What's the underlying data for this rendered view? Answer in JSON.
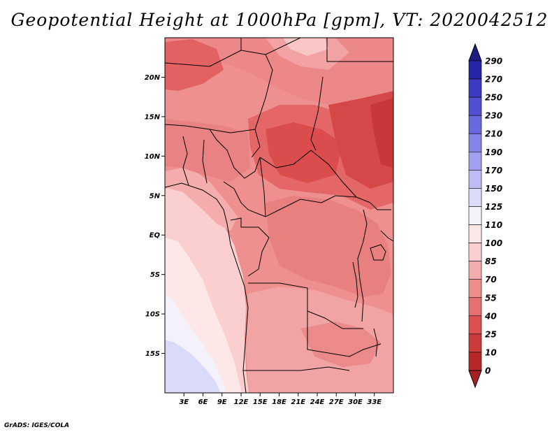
{
  "title": "Geopotential Height at 1000hPa [gpm], VT: 2020042512",
  "credit": "GrADS: IGES/COLA",
  "map": {
    "variable": "Geopotential Height",
    "level": "1000hPa",
    "units": "gpm",
    "valid_time": "2020042512",
    "lon_range": [
      0,
      36
    ],
    "lat_range": [
      -20,
      25
    ],
    "lon_ticks": [
      {
        "value": 3,
        "label": "3E"
      },
      {
        "value": 6,
        "label": "6E"
      },
      {
        "value": 9,
        "label": "9E"
      },
      {
        "value": 12,
        "label": "12E"
      },
      {
        "value": 15,
        "label": "15E"
      },
      {
        "value": 18,
        "label": "18E"
      },
      {
        "value": 21,
        "label": "21E"
      },
      {
        "value": 24,
        "label": "24E"
      },
      {
        "value": 27,
        "label": "27E"
      },
      {
        "value": 30,
        "label": "30E"
      },
      {
        "value": 33,
        "label": "33E"
      }
    ],
    "lat_ticks": [
      {
        "value": 20,
        "label": "20N"
      },
      {
        "value": 15,
        "label": "15N"
      },
      {
        "value": 10,
        "label": "10N"
      },
      {
        "value": 5,
        "label": "5N"
      },
      {
        "value": 0,
        "label": "EQ"
      },
      {
        "value": -5,
        "label": "5S"
      },
      {
        "value": -10,
        "label": "10S"
      },
      {
        "value": -15,
        "label": "15S"
      }
    ]
  },
  "colorbar": {
    "levels": [
      {
        "label": "290",
        "color": "#1a1a8c"
      },
      {
        "label": "270",
        "color": "#2626a8"
      },
      {
        "label": "250",
        "color": "#3a3ac2"
      },
      {
        "label": "230",
        "color": "#5050d2"
      },
      {
        "label": "210",
        "color": "#6a6ae0"
      },
      {
        "label": "190",
        "color": "#8484ea"
      },
      {
        "label": "170",
        "color": "#a0a0f0"
      },
      {
        "label": "150",
        "color": "#bcbcf6"
      },
      {
        "label": "125",
        "color": "#dadafa"
      },
      {
        "label": "110",
        "color": "#f2f2fd"
      },
      {
        "label": "100",
        "color": "#fde8e8"
      },
      {
        "label": "85",
        "color": "#fbcfcf"
      },
      {
        "label": "70",
        "color": "#f5acac"
      },
      {
        "label": "55",
        "color": "#ee8c8c"
      },
      {
        "label": "40",
        "color": "#e67070"
      },
      {
        "label": "25",
        "color": "#dc5050"
      },
      {
        "label": "10",
        "color": "#cc3a3a"
      },
      {
        "label": "0",
        "color": "#b82828"
      }
    ],
    "top_color": "#1c1c84",
    "bottom_color": "#a82020"
  }
}
